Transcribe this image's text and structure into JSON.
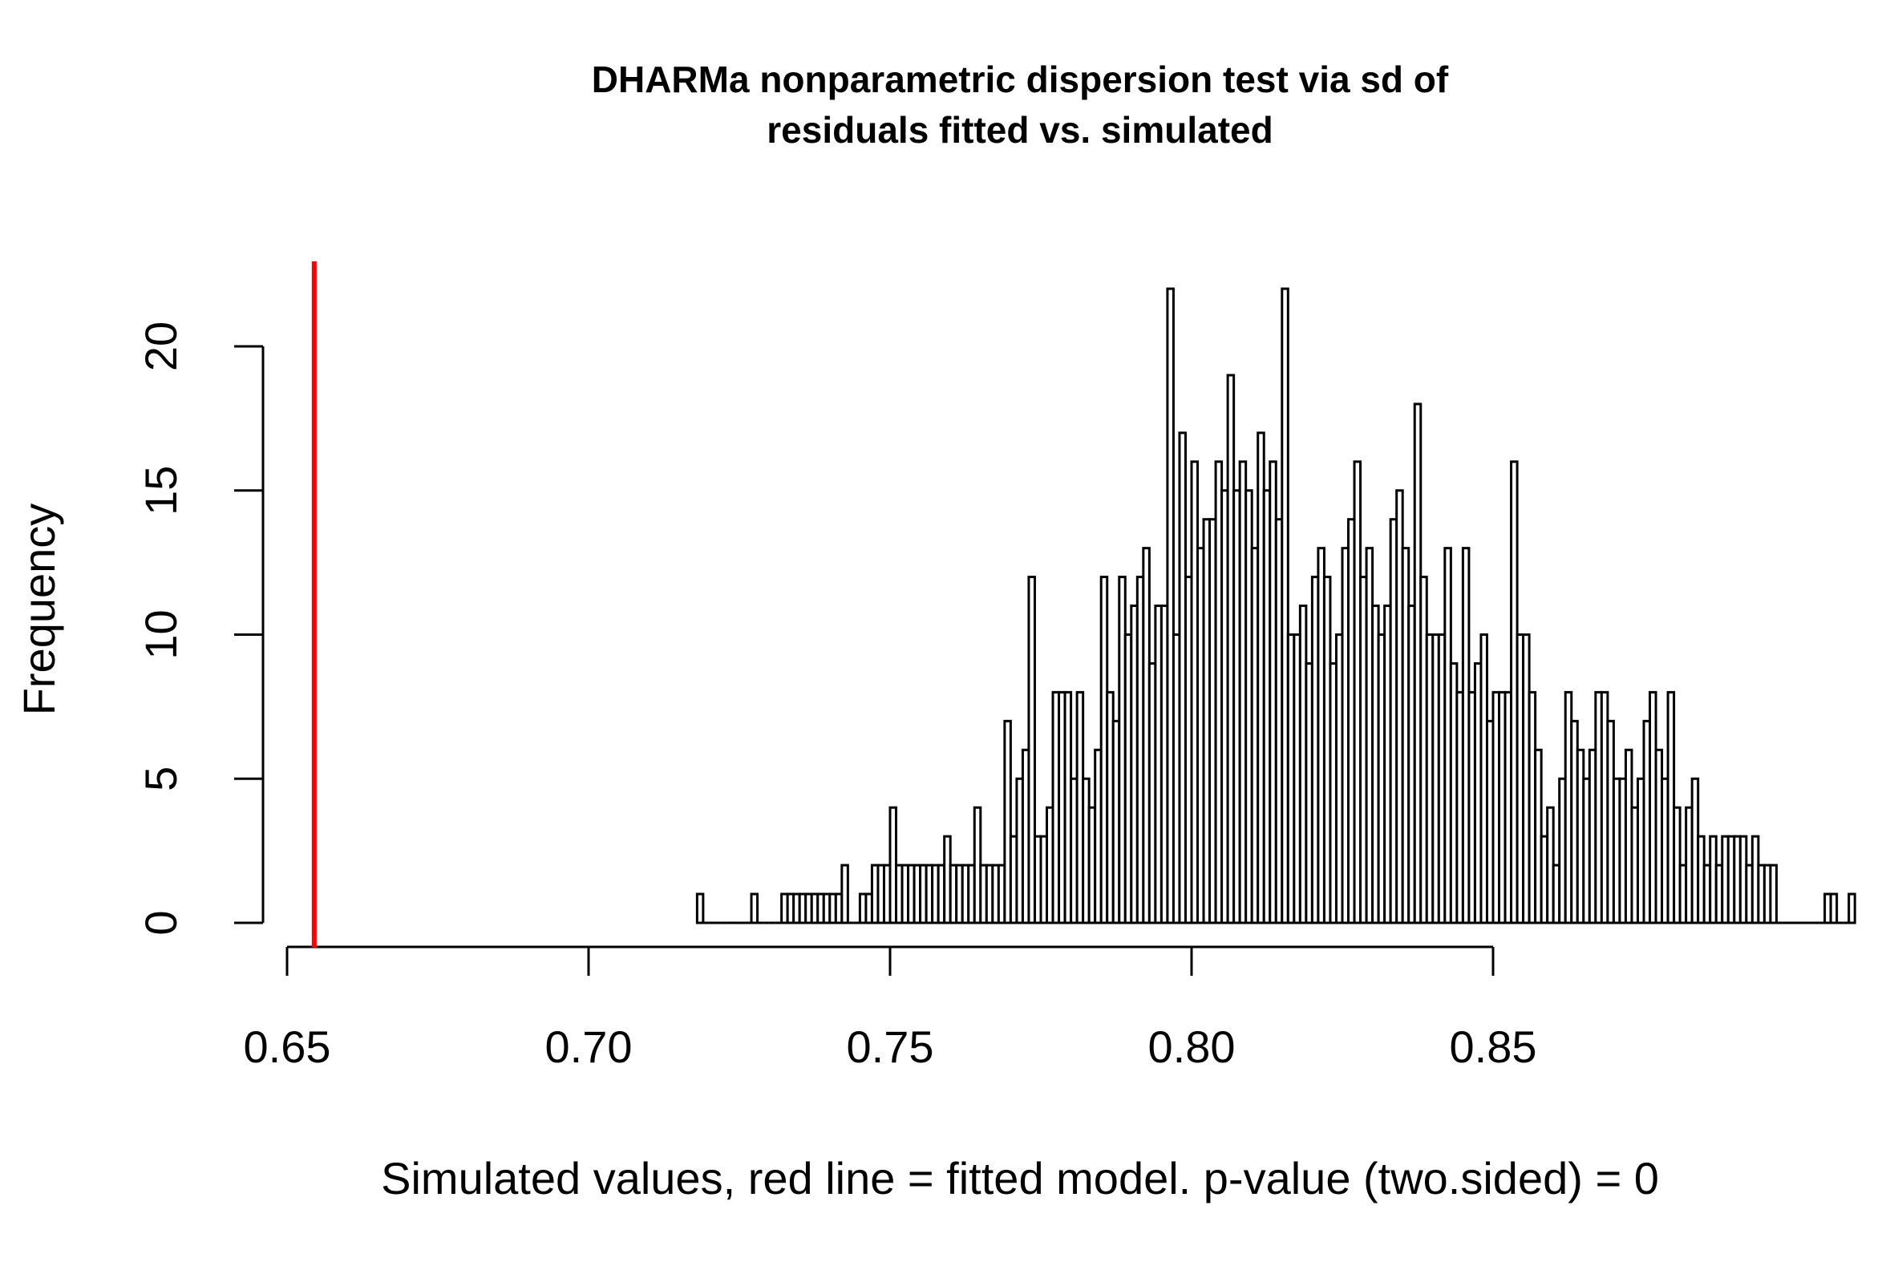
{
  "chart_data": {
    "type": "bar",
    "title_lines": [
      "DHARMa nonparametric dispersion test via sd of",
      "residuals fitted vs. simulated"
    ],
    "xlabel": "Simulated values, red line = fitted model. p-value (two.sided) = 0",
    "ylabel": "Frequency",
    "xlim": [
      0.65,
      0.89
    ],
    "ylim": [
      0,
      22
    ],
    "x_ticks": [
      "0.65",
      "0.70",
      "0.75",
      "0.80",
      "0.85"
    ],
    "y_ticks": [
      "0",
      "5",
      "10",
      "15",
      "20"
    ],
    "bin_width": 0.001,
    "bin_start": 0.718,
    "counts": [
      1,
      0,
      0,
      0,
      0,
      0,
      0,
      0,
      0,
      1,
      0,
      0,
      0,
      0,
      1,
      1,
      1,
      1,
      1,
      1,
      1,
      1,
      1,
      1,
      2,
      0,
      0,
      1,
      1,
      2,
      2,
      2,
      4,
      2,
      2,
      2,
      2,
      2,
      2,
      2,
      2,
      3,
      2,
      2,
      2,
      2,
      4,
      2,
      2,
      2,
      2,
      7,
      3,
      5,
      6,
      12,
      3,
      3,
      4,
      8,
      8,
      8,
      5,
      8,
      5,
      4,
      6,
      12,
      8,
      7,
      12,
      10,
      11,
      12,
      13,
      9,
      11,
      11,
      22,
      10,
      17,
      12,
      16,
      13,
      14,
      14,
      16,
      15,
      19,
      15,
      16,
      15,
      13,
      17,
      15,
      16,
      14,
      22,
      10,
      10,
      11,
      9,
      12,
      13,
      12,
      9,
      10,
      13,
      14,
      16,
      12,
      13,
      11,
      10,
      11,
      14,
      15,
      13,
      11,
      18,
      12,
      10,
      10,
      10,
      13,
      9,
      8,
      13,
      8,
      9,
      10,
      7,
      8,
      8,
      8,
      16,
      10,
      10,
      8,
      6,
      3,
      4,
      2,
      5,
      8,
      7,
      6,
      5,
      6,
      8,
      8,
      7,
      5,
      5,
      6,
      4,
      5,
      7,
      8,
      6,
      5,
      8,
      4,
      2,
      4,
      5,
      3,
      2,
      3,
      2,
      3,
      3,
      3,
      3,
      2,
      3,
      2,
      2,
      2,
      0,
      0,
      0,
      0,
      0,
      0,
      0,
      0,
      1,
      1,
      0,
      0,
      1
    ],
    "observed_value": 0.6545,
    "observed_line_color": "#ff0000",
    "bar_fill": "#ffffff",
    "bar_stroke": "#000000"
  }
}
